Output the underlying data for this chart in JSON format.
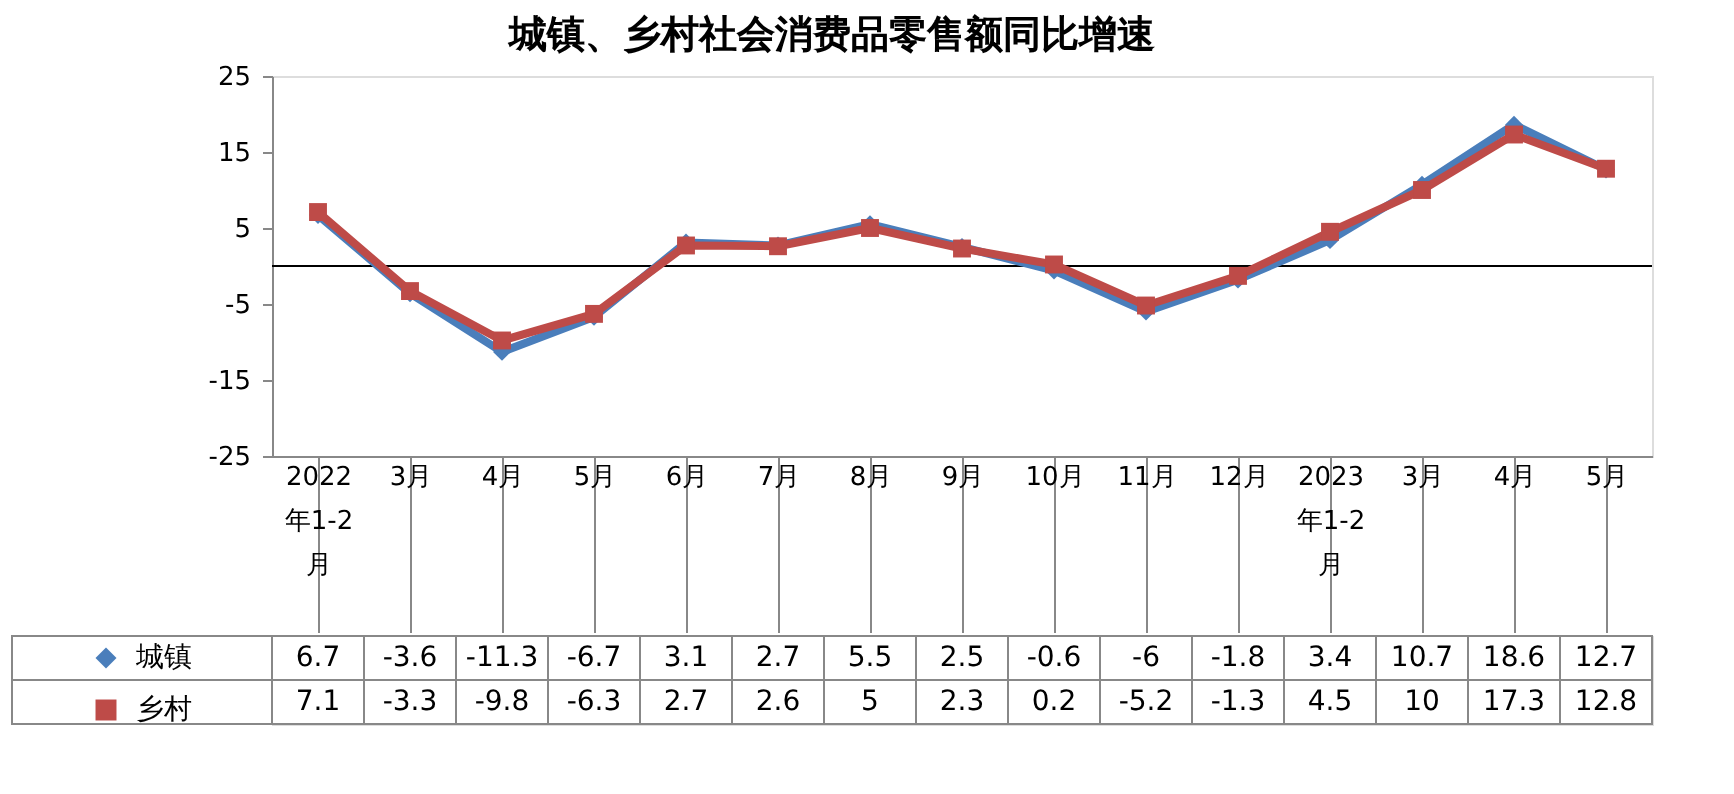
{
  "chart_data": {
    "type": "line",
    "title": "城镇、乡村社会消费品零售额同比增速",
    "categories": [
      "2022年1-2月",
      "3月",
      "4月",
      "5月",
      "6月",
      "7月",
      "8月",
      "9月",
      "10月",
      "11月",
      "12月",
      "2023年1-2月",
      "3月",
      "4月",
      "5月"
    ],
    "series": [
      {
        "name": "城镇",
        "color": "#4a7ebb",
        "marker": "diamond",
        "values": [
          6.7,
          -3.6,
          -11.3,
          -6.7,
          3.1,
          2.7,
          5.5,
          2.5,
          -0.6,
          -6,
          -1.8,
          3.4,
          10.7,
          18.6,
          12.7
        ]
      },
      {
        "name": "乡村",
        "color": "#be4b48",
        "marker": "square",
        "values": [
          7.1,
          -3.3,
          -9.8,
          -6.3,
          2.7,
          2.6,
          5,
          2.3,
          0.2,
          -5.2,
          -1.3,
          4.5,
          10,
          17.3,
          12.8
        ]
      }
    ],
    "ylim": [
      -25,
      25
    ],
    "yticks": [
      -25,
      -15,
      -5,
      5,
      15,
      25
    ],
    "ref_lines": [
      {
        "axis": "y",
        "value": 0
      }
    ],
    "grid": false,
    "legend": "bottom left",
    "data_labels": true
  }
}
